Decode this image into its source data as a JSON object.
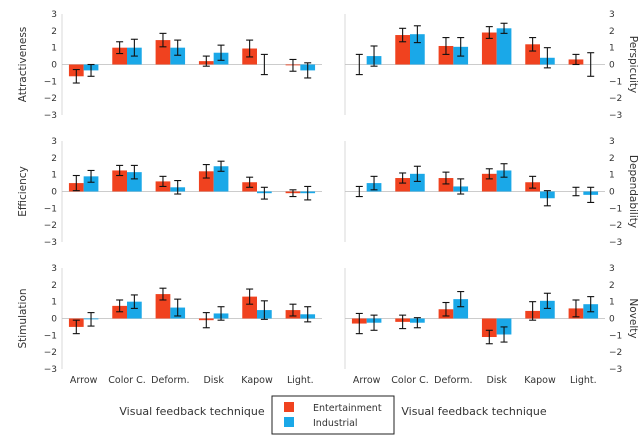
{
  "chart_data": {
    "type": "bar",
    "categories": [
      "Arrow",
      "Color C.",
      "Deform.",
      "Disk",
      "Kapow",
      "Light."
    ],
    "xlabel": "Visual feedback technique",
    "ylim": [
      -3,
      3
    ],
    "yticks": [
      "−3",
      "−2",
      "−1",
      "0",
      "1",
      "2",
      "3"
    ],
    "legend": {
      "placement": "bottom-center",
      "items": [
        {
          "name": "Entertainment",
          "color": "#f0421f"
        },
        {
          "name": "Industrial",
          "color": "#1aa8e8"
        }
      ]
    },
    "grid": false,
    "panels": [
      {
        "ylabel": "Attractiveness",
        "series": [
          {
            "name": "Entertainment",
            "values": [
              -0.7,
              1.0,
              1.45,
              0.2,
              0.95,
              -0.05
            ],
            "err": [
              0.4,
              0.35,
              0.4,
              0.3,
              0.5,
              0.35
            ]
          },
          {
            "name": "Industrial",
            "values": [
              -0.35,
              1.0,
              1.0,
              0.7,
              0.0,
              -0.35
            ],
            "err": [
              0.35,
              0.5,
              0.45,
              0.45,
              0.6,
              0.45
            ]
          }
        ]
      },
      {
        "ylabel": "Perspicuity",
        "series": [
          {
            "name": "Entertainment",
            "values": [
              0.0,
              1.75,
              1.1,
              1.9,
              1.2,
              0.3
            ],
            "err": [
              0.6,
              0.4,
              0.5,
              0.35,
              0.4,
              0.3
            ]
          },
          {
            "name": "Industrial",
            "values": [
              0.5,
              1.8,
              1.05,
              2.15,
              0.4,
              0.0
            ],
            "err": [
              0.6,
              0.5,
              0.55,
              0.3,
              0.6,
              0.7
            ]
          }
        ]
      },
      {
        "ylabel": "Efficiency",
        "series": [
          {
            "name": "Entertainment",
            "values": [
              0.5,
              1.25,
              0.6,
              1.2,
              0.55,
              -0.1
            ],
            "err": [
              0.45,
              0.3,
              0.3,
              0.4,
              0.3,
              0.2
            ]
          },
          {
            "name": "Industrial",
            "values": [
              0.9,
              1.15,
              0.25,
              1.5,
              -0.1,
              -0.1
            ],
            "err": [
              0.35,
              0.4,
              0.4,
              0.3,
              0.35,
              0.4
            ]
          }
        ]
      },
      {
        "ylabel": "Dependability",
        "series": [
          {
            "name": "Entertainment",
            "values": [
              0.0,
              0.8,
              0.8,
              1.05,
              0.55,
              0.0
            ],
            "err": [
              0.3,
              0.3,
              0.35,
              0.3,
              0.35,
              0.25
            ]
          },
          {
            "name": "Industrial",
            "values": [
              0.5,
              1.05,
              0.3,
              1.25,
              -0.4,
              -0.2
            ],
            "err": [
              0.4,
              0.45,
              0.45,
              0.4,
              0.45,
              0.45
            ]
          }
        ]
      },
      {
        "ylabel": "Stimulation",
        "series": [
          {
            "name": "Entertainment",
            "values": [
              -0.5,
              0.75,
              1.45,
              -0.1,
              1.3,
              0.5
            ],
            "err": [
              0.4,
              0.35,
              0.35,
              0.45,
              0.45,
              0.35
            ]
          },
          {
            "name": "Industrial",
            "values": [
              -0.05,
              1.0,
              0.65,
              0.3,
              0.5,
              0.25
            ],
            "err": [
              0.4,
              0.4,
              0.5,
              0.4,
              0.55,
              0.45
            ]
          }
        ]
      },
      {
        "ylabel": "Novelty",
        "series": [
          {
            "name": "Entertainment",
            "values": [
              -0.3,
              -0.2,
              0.55,
              -1.1,
              0.45,
              0.6
            ],
            "err": [
              0.6,
              0.4,
              0.4,
              0.4,
              0.55,
              0.5
            ]
          },
          {
            "name": "Industrial",
            "values": [
              -0.25,
              -0.25,
              1.15,
              -0.95,
              1.05,
              0.85
            ],
            "err": [
              0.45,
              0.3,
              0.45,
              0.45,
              0.45,
              0.45
            ]
          }
        ]
      }
    ]
  }
}
